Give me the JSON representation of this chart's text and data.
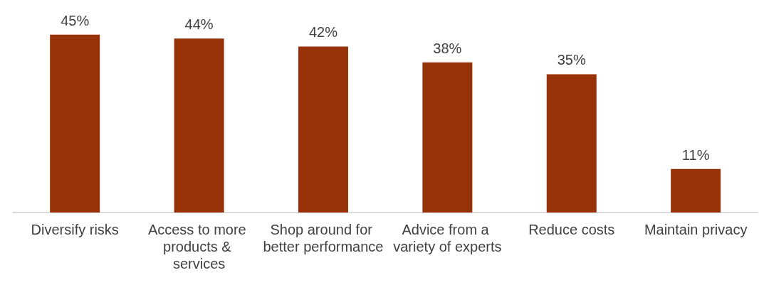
{
  "chart_data": {
    "type": "bar",
    "categories": [
      "Diversify risks",
      "Access to more products & services",
      "Shop around for better performance",
      "Advice from a variety of experts",
      "Reduce costs",
      "Maintain privacy"
    ],
    "values": [
      45,
      44,
      42,
      38,
      35,
      11
    ],
    "value_labels": [
      "45%",
      "44%",
      "42%",
      "38%",
      "35%",
      "11%"
    ],
    "color": "#963108"
  }
}
